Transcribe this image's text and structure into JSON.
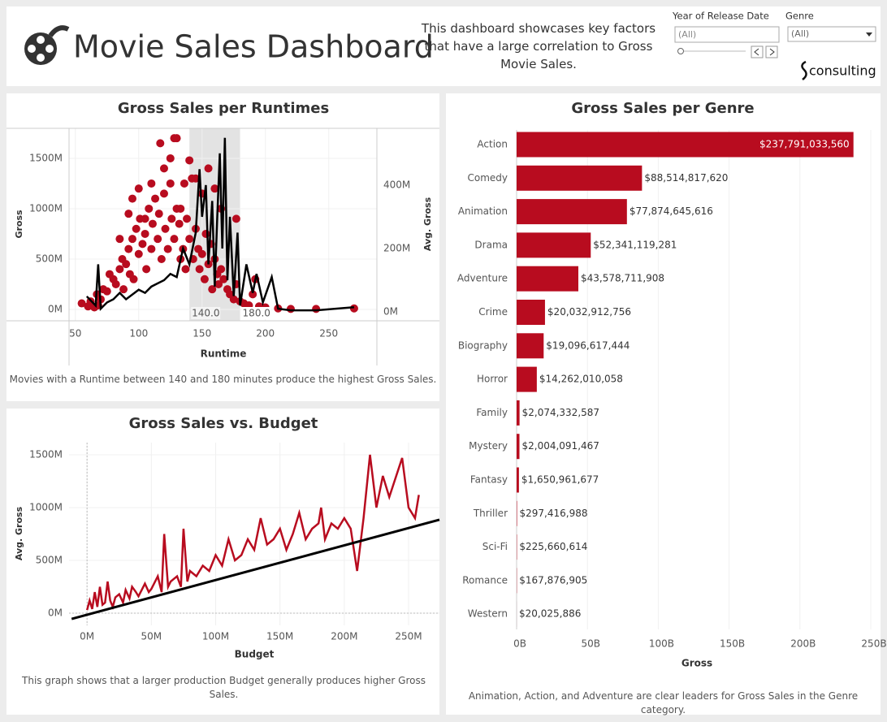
{
  "header": {
    "title": "Movie Sales Dashboard",
    "description": "This dashboard showcases key factors that have a large correlation to Gross Movie Sales.",
    "filters": [
      {
        "label": "Year of Release Date",
        "value": "(All)"
      },
      {
        "label": "Genre",
        "value": "(All)"
      }
    ],
    "logo": "consulting"
  },
  "chart_data": [
    {
      "type": "scatter",
      "title": "Gross Sales per Runtimes",
      "caption": "Movies with a Runtime between 140 and 180 minutes produce the highest Gross Sales.",
      "x_label": "Runtime",
      "y_label": "Gross",
      "y2_label": "Avg. Gross",
      "xlim": [
        45,
        288
      ],
      "xticks": [
        50,
        100,
        150,
        200,
        250
      ],
      "ylim": [
        -113,
        1798
      ],
      "yticks": [
        {
          "value": 0,
          "label": "0M"
        },
        {
          "value": 500,
          "label": "500M"
        },
        {
          "value": 1000,
          "label": "1000M"
        },
        {
          "value": 1500,
          "label": "1500M"
        }
      ],
      "y2lim": [
        -28,
        579
      ],
      "y2ticks": [
        {
          "value": 0,
          "label": "0M"
        },
        {
          "value": 200,
          "label": "200M"
        },
        {
          "value": 400,
          "label": "400M"
        }
      ],
      "highlight": [
        {
          "value": 140,
          "label": "140.0"
        },
        {
          "value": 180,
          "label": "180.0"
        }
      ],
      "series": [
        {
          "type": "scatter",
          "color": "#b80c1f",
          "x": [
            55,
            60,
            62,
            65,
            67,
            68,
            70,
            72,
            75,
            77,
            80,
            82,
            85,
            87,
            88,
            90,
            92,
            93,
            95,
            96,
            98,
            100,
            101,
            103,
            105,
            106,
            108,
            110,
            111,
            113,
            115,
            116,
            118,
            120,
            121,
            123,
            125,
            126,
            128,
            130,
            132,
            133,
            135,
            137,
            138,
            140,
            142,
            143,
            145,
            147,
            148,
            150,
            152,
            153,
            155,
            157,
            158,
            160,
            162,
            163,
            165,
            167,
            170,
            172,
            175,
            177,
            180,
            183,
            187,
            190,
            195,
            200,
            210,
            220,
            240,
            270,
            85,
            92,
            95,
            100,
            105,
            110,
            117,
            120,
            125,
            128,
            130,
            133,
            136,
            140,
            145,
            150,
            155,
            160,
            165,
            177,
            192
          ],
          "values": [
            60,
            30,
            80,
            20,
            150,
            40,
            100,
            200,
            180,
            350,
            300,
            250,
            400,
            500,
            200,
            450,
            600,
            350,
            700,
            300,
            800,
            550,
            900,
            650,
            750,
            400,
            1000,
            600,
            850,
            1100,
            700,
            950,
            500,
            1150,
            800,
            600,
            1250,
            900,
            700,
            1000,
            850,
            500,
            600,
            400,
            900,
            700,
            1300,
            500,
            800,
            600,
            400,
            550,
            300,
            750,
            450,
            650,
            200,
            500,
            350,
            250,
            400,
            300,
            200,
            150,
            100,
            250,
            80,
            60,
            40,
            150,
            30,
            20,
            10,
            5,
            5,
            10,
            700,
            950,
            1100,
            1200,
            900,
            1250,
            1650,
            1400,
            1500,
            1700,
            1700,
            1000,
            1250,
            1480,
            1300,
            1150,
            1400,
            1200,
            1000,
            900,
            300
          ]
        },
        {
          "type": "line",
          "axis": "y2",
          "color": "#000000",
          "x": [
            59,
            66,
            68,
            70,
            75,
            80,
            85,
            90,
            95,
            100,
            105,
            110,
            115,
            120,
            125,
            130,
            135,
            140,
            145,
            148,
            150,
            153,
            155,
            158,
            160,
            162,
            164,
            166,
            168,
            170,
            172,
            175,
            178,
            180,
            185,
            190,
            193,
            198,
            205,
            210,
            220,
            230,
            240,
            270
          ],
          "values": [
            49,
            20,
            150,
            10,
            30,
            40,
            60,
            40,
            55,
            70,
            60,
            80,
            90,
            100,
            120,
            110,
            200,
            150,
            250,
            450,
            300,
            400,
            150,
            350,
            80,
            300,
            500,
            200,
            549,
            100,
            300,
            50,
            250,
            20,
            150,
            60,
            120,
            30,
            110,
            10,
            5,
            5,
            5,
            15
          ]
        }
      ]
    },
    {
      "type": "line",
      "title": "Gross Sales vs. Budget",
      "caption": "This graph shows that a larger production Budget generally produces higher Gross Sales.",
      "x_label": "Budget",
      "y_label": "Avg. Gross",
      "xlim": [
        -14,
        274
      ],
      "xticks": [
        {
          "value": 0,
          "label": "0M"
        },
        {
          "value": 50,
          "label": "50M"
        },
        {
          "value": 100,
          "label": "100M"
        },
        {
          "value": 150,
          "label": "150M"
        },
        {
          "value": 200,
          "label": "200M"
        },
        {
          "value": 250,
          "label": "250M"
        }
      ],
      "ylim": [
        -115,
        1615
      ],
      "yticks": [
        {
          "value": 0,
          "label": "0M"
        },
        {
          "value": 500,
          "label": "500M"
        },
        {
          "value": 1000,
          "label": "1000M"
        },
        {
          "value": 1500,
          "label": "1500M"
        }
      ],
      "series": [
        {
          "type": "line",
          "color": "#b80c1f",
          "x": [
            0,
            2,
            4,
            6,
            8,
            10,
            12,
            14,
            16,
            18,
            20,
            22,
            25,
            28,
            30,
            33,
            35,
            38,
            40,
            45,
            48,
            50,
            55,
            58,
            60,
            63,
            65,
            70,
            73,
            75,
            78,
            80,
            85,
            90,
            95,
            100,
            105,
            110,
            115,
            120,
            125,
            130,
            135,
            140,
            145,
            150,
            155,
            160,
            165,
            170,
            175,
            180,
            182,
            185,
            190,
            195,
            200,
            205,
            210,
            215,
            220,
            225,
            230,
            235,
            245,
            250,
            255,
            258
          ],
          "values": [
            30,
            120,
            40,
            200,
            60,
            250,
            80,
            100,
            300,
            120,
            60,
            150,
            180,
            100,
            220,
            140,
            250,
            200,
            160,
            280,
            200,
            230,
            350,
            200,
            750,
            250,
            300,
            350,
            250,
            800,
            300,
            400,
            350,
            450,
            400,
            550,
            450,
            700,
            500,
            550,
            700,
            600,
            900,
            650,
            700,
            800,
            600,
            750,
            950,
            700,
            800,
            850,
            1000,
            700,
            850,
            800,
            900,
            800,
            400,
            900,
            1500,
            1000,
            1300,
            1100,
            1470,
            1000,
            900,
            1120
          ]
        },
        {
          "type": "trend",
          "color": "#000000",
          "x": [
            -12,
            274
          ],
          "values": [
            -54,
            885
          ]
        }
      ]
    },
    {
      "type": "bar",
      "orientation": "horizontal",
      "title": "Gross Sales per Genre",
      "caption": "Animation, Action, and Adventure are clear leaders for Gross Sales in the Genre category.",
      "x_label": "Gross",
      "color": "#b80c1f",
      "categories": [
        "Action",
        "Comedy",
        "Animation",
        "Drama",
        "Adventure",
        "Crime",
        "Biography",
        "Horror",
        "Family",
        "Mystery",
        "Fantasy",
        "Thriller",
        "Sci-Fi",
        "Romance",
        "Western"
      ],
      "values": [
        237791033560,
        88514817620,
        77874645616,
        52341119281,
        43578711908,
        20032912756,
        19096617444,
        14262010058,
        2074332587,
        2004091467,
        1650961677,
        297416988,
        225660614,
        167876905,
        20025886
      ],
      "value_labels": [
        "$237,791,033,560",
        "$88,514,817,620",
        "$77,874,645,616",
        "$52,341,119,281",
        "$43,578,711,908",
        "$20,032,912,756",
        "$19,096,617,444",
        "$14,262,010,058",
        "$2,074,332,587",
        "$2,004,091,467",
        "$1,650,961,677",
        "$297,416,988",
        "$225,660,614",
        "$167,876,905",
        "$20,025,886"
      ],
      "xlim": [
        0,
        250000000000
      ],
      "xticks": [
        {
          "value": 0,
          "label": "0B"
        },
        {
          "value": 50000000000,
          "label": "50B"
        },
        {
          "value": 100000000000,
          "label": "100B"
        },
        {
          "value": 150000000000,
          "label": "150B"
        },
        {
          "value": 200000000000,
          "label": "200B"
        },
        {
          "value": 250000000000,
          "label": "250B"
        }
      ]
    }
  ]
}
